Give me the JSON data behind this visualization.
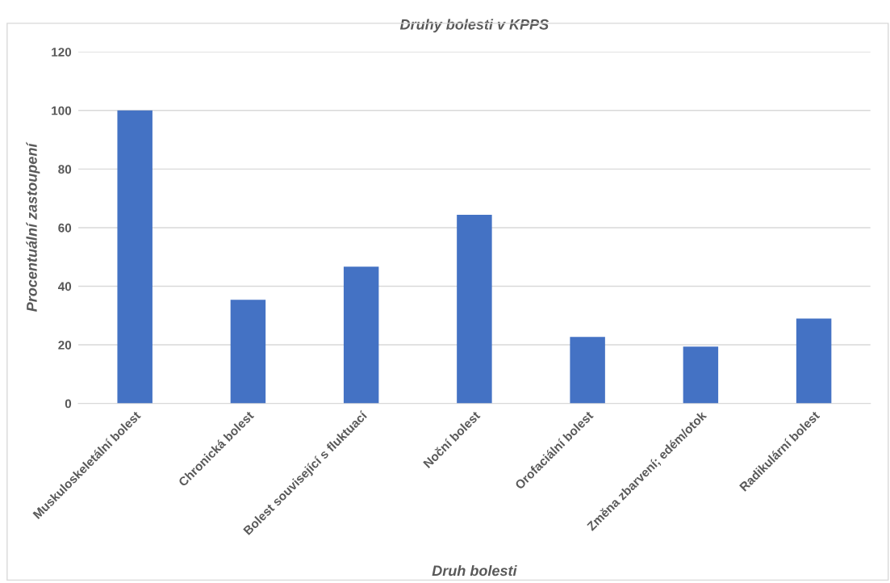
{
  "chart_data": {
    "type": "bar",
    "title": "Druhy bolesti v KPPS",
    "xlabel": "Druh bolesti",
    "ylabel": "Procentuální zastoupení",
    "categories": [
      "Muskuloskeletální bolest",
      "Chronická bolest",
      "Bolest související s fluktuací",
      "Noční bolest",
      "Orofaciální bolest",
      "Změna zbarvení; edém/otok",
      "Radikulární bolest"
    ],
    "values": [
      100,
      35.4,
      46.7,
      64.4,
      22.7,
      19.4,
      29.0
    ],
    "color": "#4472c4",
    "ylim": [
      0,
      120
    ],
    "yticks": [
      0,
      20,
      40,
      60,
      80,
      100,
      120
    ],
    "grid": "y"
  }
}
